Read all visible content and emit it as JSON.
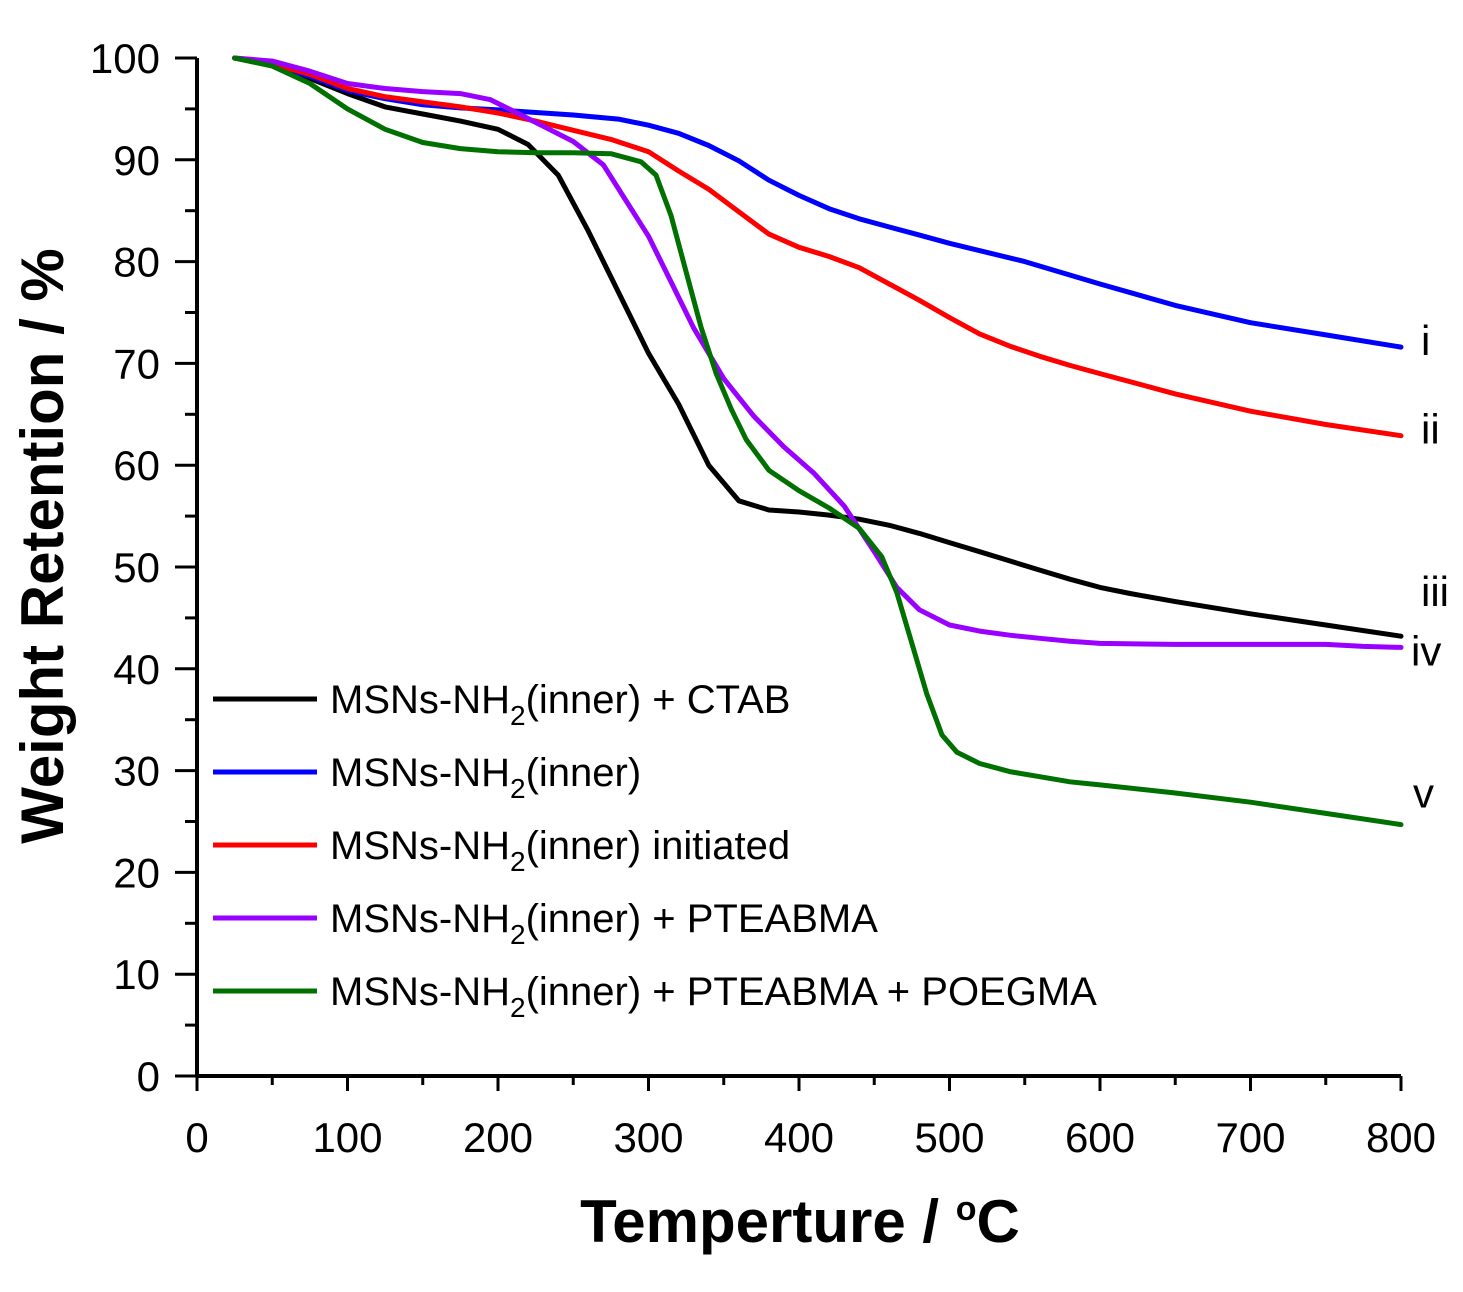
{
  "chart_data": {
    "type": "line",
    "xlabel": "Temperture / °C",
    "xlabel_main": "Temperture / ",
    "xlabel_unit_deg": "o",
    "xlabel_unit_c": "C",
    "ylabel": "Weight Retention / %",
    "xlim": [
      0,
      800
    ],
    "ylim": [
      0,
      100
    ],
    "x_ticks": [
      "0",
      "100",
      "200",
      "300",
      "400",
      "500",
      "600",
      "700",
      "800"
    ],
    "y_ticks": [
      "0",
      "10",
      "20",
      "30",
      "40",
      "50",
      "60",
      "70",
      "80",
      "90",
      "100"
    ],
    "legend_position": "bottom-left",
    "series": [
      {
        "name": "MSNs-NH2(inner) + CTAB",
        "legend_main": "MSNs-NH",
        "legend_sub": "2",
        "legend_rest": "(inner) + CTAB",
        "label": "iii",
        "color": "#000000",
        "points": [
          [
            25,
            100
          ],
          [
            50,
            99.3
          ],
          [
            75,
            98
          ],
          [
            100,
            96.5
          ],
          [
            125,
            95.2
          ],
          [
            150,
            94.5
          ],
          [
            175,
            93.8
          ],
          [
            200,
            93
          ],
          [
            220,
            91.5
          ],
          [
            240,
            88.5
          ],
          [
            260,
            83
          ],
          [
            280,
            77
          ],
          [
            300,
            71
          ],
          [
            320,
            66
          ],
          [
            340,
            60
          ],
          [
            360,
            56.5
          ],
          [
            380,
            55.6
          ],
          [
            400,
            55.4
          ],
          [
            420,
            55.1
          ],
          [
            440,
            54.7
          ],
          [
            460,
            54.1
          ],
          [
            480,
            53.3
          ],
          [
            500,
            52.4
          ],
          [
            520,
            51.5
          ],
          [
            540,
            50.6
          ],
          [
            560,
            49.7
          ],
          [
            580,
            48.8
          ],
          [
            600,
            48
          ],
          [
            620,
            47.4
          ],
          [
            650,
            46.6
          ],
          [
            700,
            45.4
          ],
          [
            750,
            44.3
          ],
          [
            800,
            43.2
          ]
        ]
      },
      {
        "name": "MSNs-NH2(inner)",
        "legend_main": "MSNs-NH",
        "legend_sub": "2",
        "legend_rest": "(inner)",
        "label": "i",
        "color": "#0000ff",
        "points": [
          [
            25,
            100
          ],
          [
            50,
            99.3
          ],
          [
            75,
            98.2
          ],
          [
            100,
            96.8
          ],
          [
            125,
            96
          ],
          [
            150,
            95.4
          ],
          [
            175,
            95.1
          ],
          [
            200,
            94.9
          ],
          [
            250,
            94.4
          ],
          [
            280,
            94
          ],
          [
            300,
            93.4
          ],
          [
            320,
            92.6
          ],
          [
            340,
            91.4
          ],
          [
            360,
            89.9
          ],
          [
            380,
            88
          ],
          [
            400,
            86.5
          ],
          [
            420,
            85.2
          ],
          [
            440,
            84.2
          ],
          [
            460,
            83.4
          ],
          [
            480,
            82.6
          ],
          [
            500,
            81.8
          ],
          [
            550,
            80
          ],
          [
            600,
            77.8
          ],
          [
            650,
            75.7
          ],
          [
            700,
            74
          ],
          [
            750,
            72.8
          ],
          [
            800,
            71.6
          ]
        ]
      },
      {
        "name": "MSNs-NH2(inner) initiated",
        "legend_main": "MSNs-NH",
        "legend_sub": "2",
        "legend_rest": "(inner) initiated",
        "label": "ii",
        "color": "#ff0000",
        "points": [
          [
            25,
            100
          ],
          [
            50,
            99.4
          ],
          [
            75,
            98.4
          ],
          [
            100,
            97
          ],
          [
            125,
            96.2
          ],
          [
            150,
            95.7
          ],
          [
            175,
            95.2
          ],
          [
            200,
            94.6
          ],
          [
            225,
            93.8
          ],
          [
            250,
            92.9
          ],
          [
            275,
            92
          ],
          [
            300,
            90.8
          ],
          [
            320,
            88.9
          ],
          [
            340,
            87.1
          ],
          [
            360,
            84.9
          ],
          [
            380,
            82.7
          ],
          [
            400,
            81.4
          ],
          [
            420,
            80.5
          ],
          [
            440,
            79.4
          ],
          [
            460,
            77.8
          ],
          [
            480,
            76.2
          ],
          [
            500,
            74.5
          ],
          [
            520,
            72.9
          ],
          [
            540,
            71.7
          ],
          [
            560,
            70.7
          ],
          [
            580,
            69.8
          ],
          [
            600,
            69
          ],
          [
            650,
            67
          ],
          [
            700,
            65.3
          ],
          [
            750,
            64
          ],
          [
            800,
            62.9
          ]
        ]
      },
      {
        "name": "MSNs-NH2(inner) + PTEABMA",
        "legend_main": "MSNs-NH",
        "legend_sub": "2",
        "legend_rest": "(inner) + PTEABMA",
        "label": "iv",
        "color": "#9a00ff",
        "points": [
          [
            25,
            100
          ],
          [
            50,
            99.7
          ],
          [
            75,
            98.7
          ],
          [
            100,
            97.5
          ],
          [
            125,
            97
          ],
          [
            150,
            96.7
          ],
          [
            175,
            96.5
          ],
          [
            195,
            95.9
          ],
          [
            210,
            94.8
          ],
          [
            230,
            93.3
          ],
          [
            250,
            91.8
          ],
          [
            270,
            89.5
          ],
          [
            285,
            86
          ],
          [
            300,
            82.5
          ],
          [
            315,
            78
          ],
          [
            330,
            73.5
          ],
          [
            350,
            68.5
          ],
          [
            370,
            64.8
          ],
          [
            390,
            61.8
          ],
          [
            410,
            59.2
          ],
          [
            430,
            56
          ],
          [
            450,
            51.5
          ],
          [
            465,
            48
          ],
          [
            480,
            45.8
          ],
          [
            500,
            44.3
          ],
          [
            520,
            43.7
          ],
          [
            540,
            43.3
          ],
          [
            560,
            43
          ],
          [
            580,
            42.7
          ],
          [
            600,
            42.5
          ],
          [
            650,
            42.4
          ],
          [
            700,
            42.4
          ],
          [
            750,
            42.4
          ],
          [
            775,
            42.2
          ],
          [
            800,
            42.1
          ]
        ]
      },
      {
        "name": "MSNs-NH2(inner) + PTEABMA + POEGMA",
        "legend_main": "MSNs-NH",
        "legend_sub": "2",
        "legend_rest": "(inner) + PTEABMA + POEGMA",
        "label": "v",
        "color": "#007000",
        "points": [
          [
            25,
            100
          ],
          [
            50,
            99.2
          ],
          [
            75,
            97.5
          ],
          [
            100,
            95
          ],
          [
            125,
            93
          ],
          [
            150,
            91.7
          ],
          [
            175,
            91.1
          ],
          [
            200,
            90.8
          ],
          [
            225,
            90.7
          ],
          [
            250,
            90.7
          ],
          [
            275,
            90.6
          ],
          [
            295,
            89.8
          ],
          [
            305,
            88.5
          ],
          [
            315,
            84.5
          ],
          [
            325,
            79
          ],
          [
            335,
            73.5
          ],
          [
            345,
            69
          ],
          [
            355,
            65.5
          ],
          [
            365,
            62.5
          ],
          [
            380,
            59.5
          ],
          [
            400,
            57.5
          ],
          [
            420,
            55.8
          ],
          [
            440,
            53.8
          ],
          [
            455,
            51
          ],
          [
            465,
            47.5
          ],
          [
            475,
            42.5
          ],
          [
            485,
            37.5
          ],
          [
            495,
            33.5
          ],
          [
            505,
            31.8
          ],
          [
            520,
            30.7
          ],
          [
            540,
            29.9
          ],
          [
            560,
            29.4
          ],
          [
            580,
            28.9
          ],
          [
            600,
            28.6
          ],
          [
            650,
            27.8
          ],
          [
            700,
            26.9
          ],
          [
            750,
            25.8
          ],
          [
            800,
            24.7
          ]
        ]
      }
    ]
  }
}
